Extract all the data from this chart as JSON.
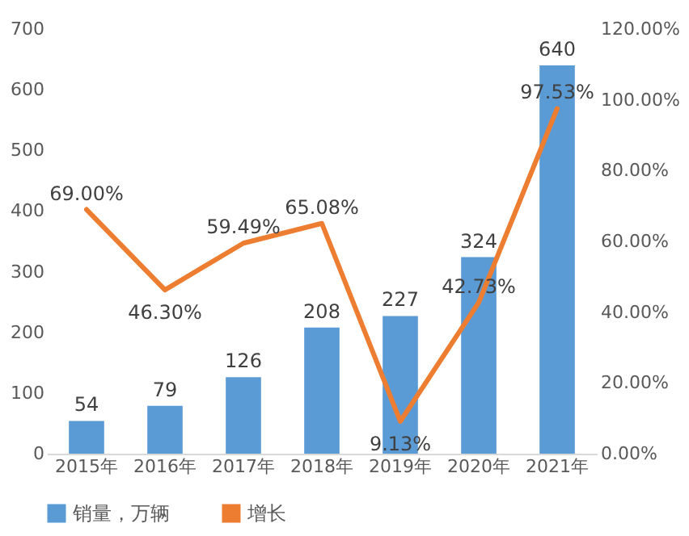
{
  "chart_data": {
    "type": "bar",
    "categories": [
      "2015年",
      "2016年",
      "2017年",
      "2018年",
      "2019年",
      "2020年",
      "2021年"
    ],
    "series": [
      {
        "name": "销量，万辆",
        "color": "#5b9bd5",
        "values": [
          54,
          79,
          126,
          208,
          227,
          324,
          640
        ]
      },
      {
        "name": "增长",
        "type": "line",
        "axis": "y2",
        "color": "#ed7d31",
        "values": [
          69.0,
          46.3,
          59.49,
          65.08,
          9.13,
          42.73,
          97.53
        ],
        "value_labels": [
          "69.00%",
          "46.30%",
          "59.49%",
          "65.08%",
          "9.13%",
          "42.73%",
          "97.53%"
        ]
      }
    ],
    "ylim": [
      0,
      700
    ],
    "yticks": [
      0,
      100,
      200,
      300,
      400,
      500,
      600,
      700
    ],
    "y2lim": [
      0,
      120
    ],
    "y2ticks": [
      {
        "value": 0,
        "label": "0.00%"
      },
      {
        "value": 20,
        "label": "20.00%"
      },
      {
        "value": 40,
        "label": "40.00%"
      },
      {
        "value": 60,
        "label": "60.00%"
      },
      {
        "value": 80,
        "label": "80.00%"
      },
      {
        "value": 100,
        "label": "100.00%"
      },
      {
        "value": 120,
        "label": "120.00%"
      }
    ],
    "data_labels": true,
    "grid": false,
    "legend": "bottom",
    "marker": "none",
    "line_style": "solid"
  }
}
